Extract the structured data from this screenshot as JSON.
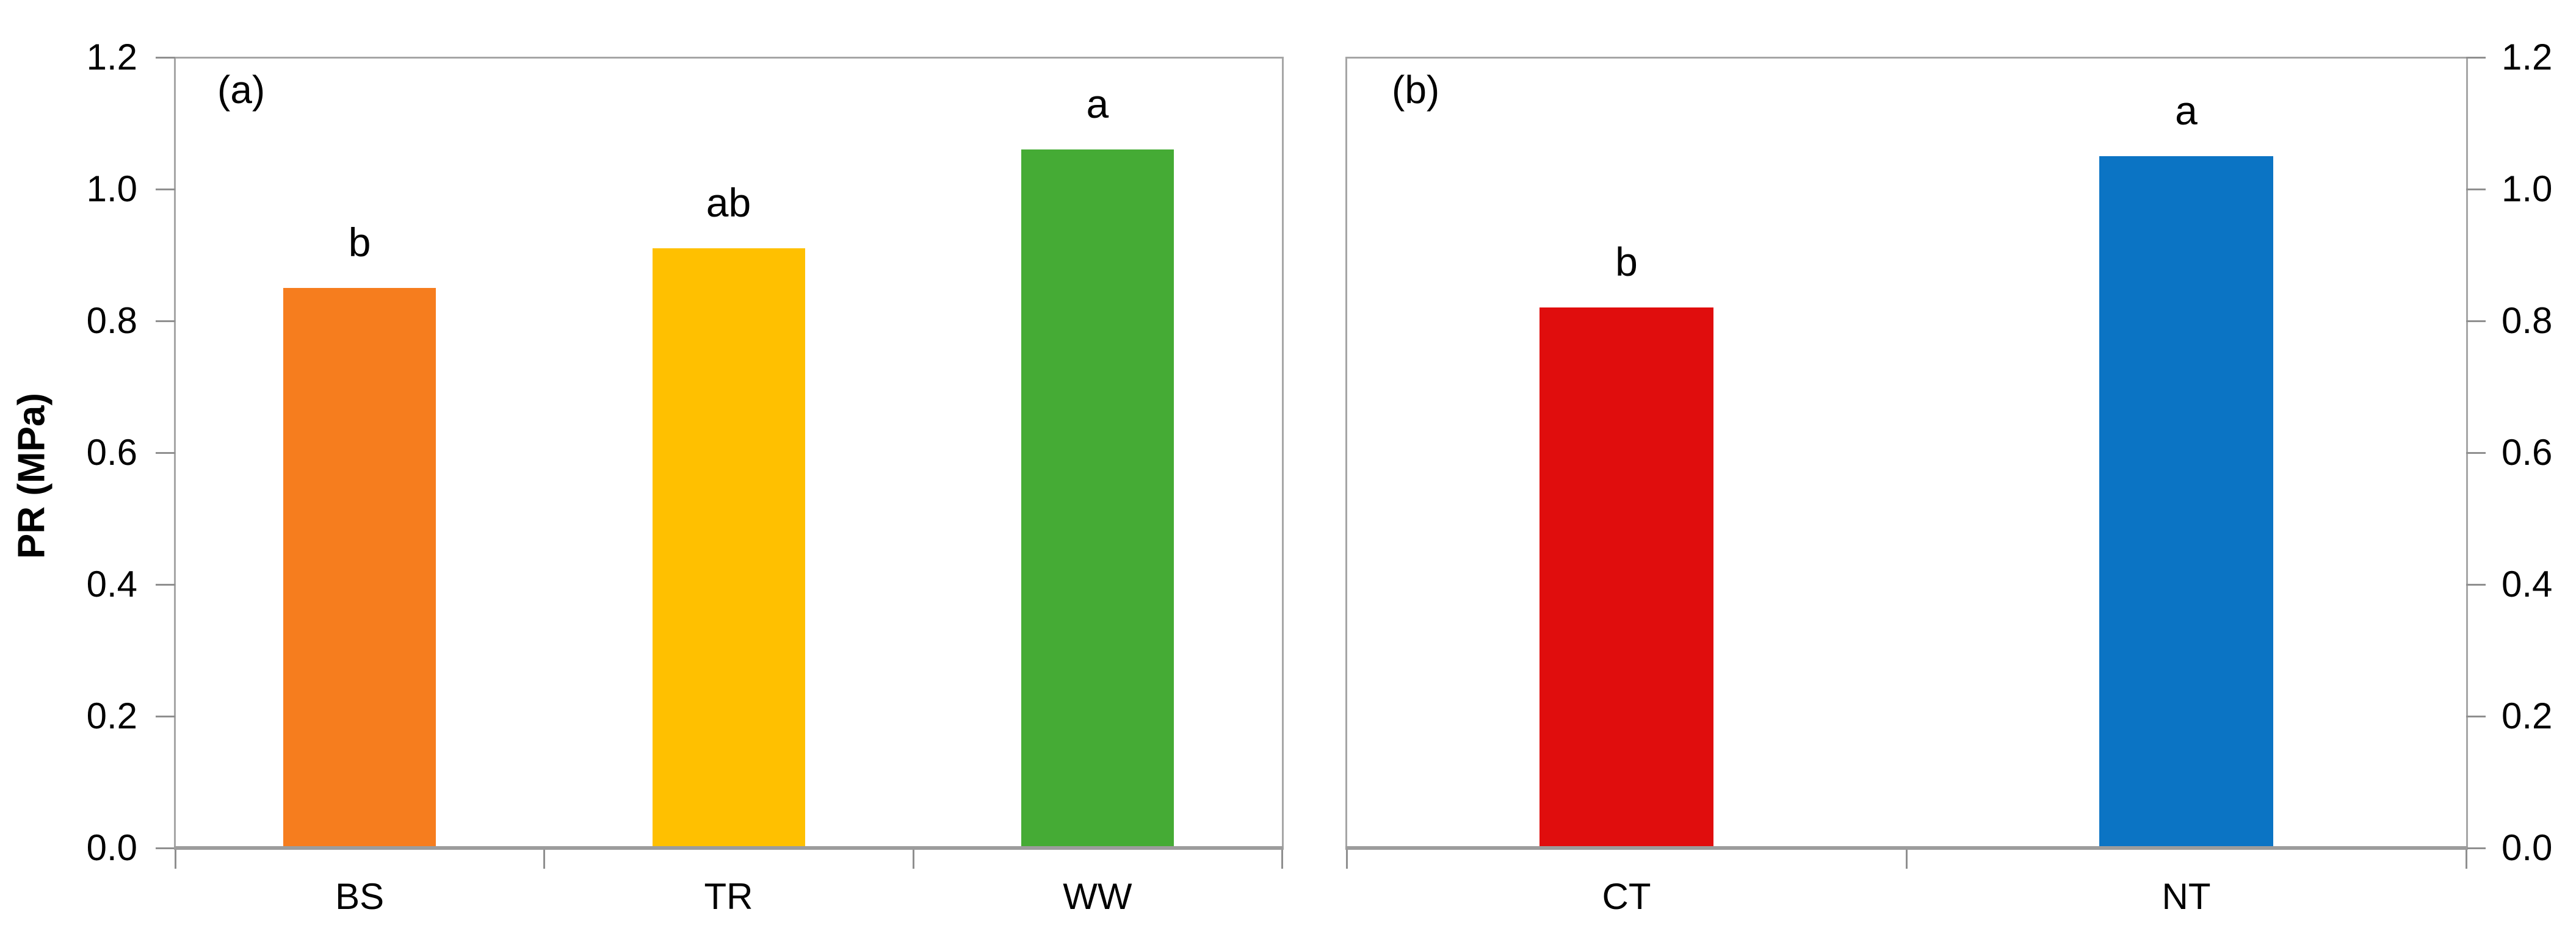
{
  "figure": {
    "y_axis_title": "PR (MPa)"
  },
  "chart_data": [
    {
      "type": "bar",
      "panel_label": "(a)",
      "y_axis_side": "left",
      "categories": [
        "BS",
        "TR",
        "WW"
      ],
      "values": [
        0.85,
        0.91,
        1.06
      ],
      "significance_letters": [
        "b",
        "ab",
        "a"
      ],
      "bar_colors": [
        "#F67D1E",
        "#FFC000",
        "#45AB35"
      ],
      "ylabel": "PR (MPa)",
      "ylim": [
        0,
        1.2
      ],
      "ytick_labels": [
        "1.2",
        "1.0",
        "0.8",
        "0.6",
        "0.4",
        "0.2",
        "0.0"
      ],
      "grid": false,
      "legend": "none"
    },
    {
      "type": "bar",
      "panel_label": "(b)",
      "y_axis_side": "right",
      "categories": [
        "CT",
        "NT"
      ],
      "values": [
        0.82,
        1.05
      ],
      "significance_letters": [
        "b",
        "a"
      ],
      "bar_colors": [
        "#E00D0D",
        "#0B74C4"
      ],
      "ylabel": "",
      "ylim": [
        0,
        1.2
      ],
      "ytick_labels": [
        "1.2",
        "1.0",
        "0.8",
        "0.6",
        "0.4",
        "0.2",
        "0.0"
      ],
      "grid": false,
      "legend": "none"
    }
  ],
  "style_colors": {
    "axis_line": "#A6A6A6",
    "baseline": "#9C9C9C",
    "tick_mark": "#8F8F8F",
    "text": "#000000",
    "background": "#FFFFFF"
  }
}
